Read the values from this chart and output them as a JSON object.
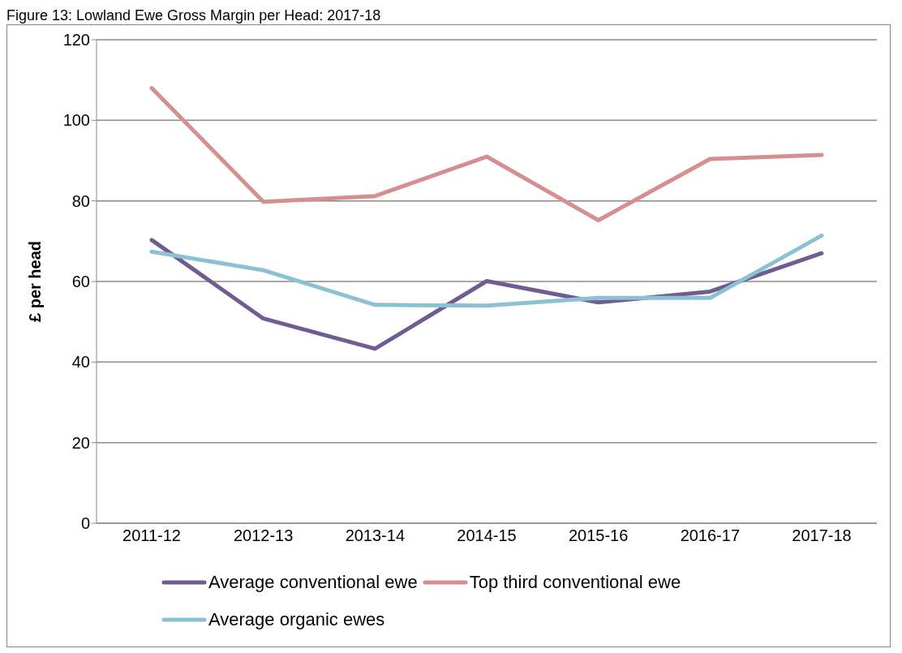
{
  "chart_data": {
    "type": "line",
    "title": "Figure 13: Lowland Ewe Gross Margin per Head: 2017-18",
    "ylabel": "£ per head",
    "categories": [
      "2011-12",
      "2012-13",
      "2013-14",
      "2014-15",
      "2015-16",
      "2016-17",
      "2017-18"
    ],
    "series": [
      {
        "name": "Average conventional ewe",
        "color": "#715b93",
        "values": [
          70.3,
          50.8,
          43.3,
          60.1,
          54.8,
          57.5,
          67.0
        ]
      },
      {
        "name": "Top third conventional ewe",
        "color": "#d48f8e",
        "values": [
          108.0,
          79.8,
          81.2,
          91.0,
          75.2,
          90.4,
          91.4
        ]
      },
      {
        "name": "Average organic ewes",
        "color": "#8cc1d5",
        "values": [
          67.4,
          62.8,
          54.2,
          54.0,
          55.9,
          55.9,
          71.4
        ]
      }
    ],
    "ylim": [
      0,
      120
    ],
    "yticks": [
      0,
      20,
      40,
      60,
      80,
      100,
      120
    ],
    "grid": "y",
    "legend": "bottom",
    "marker": "none",
    "line_style": "solid"
  }
}
